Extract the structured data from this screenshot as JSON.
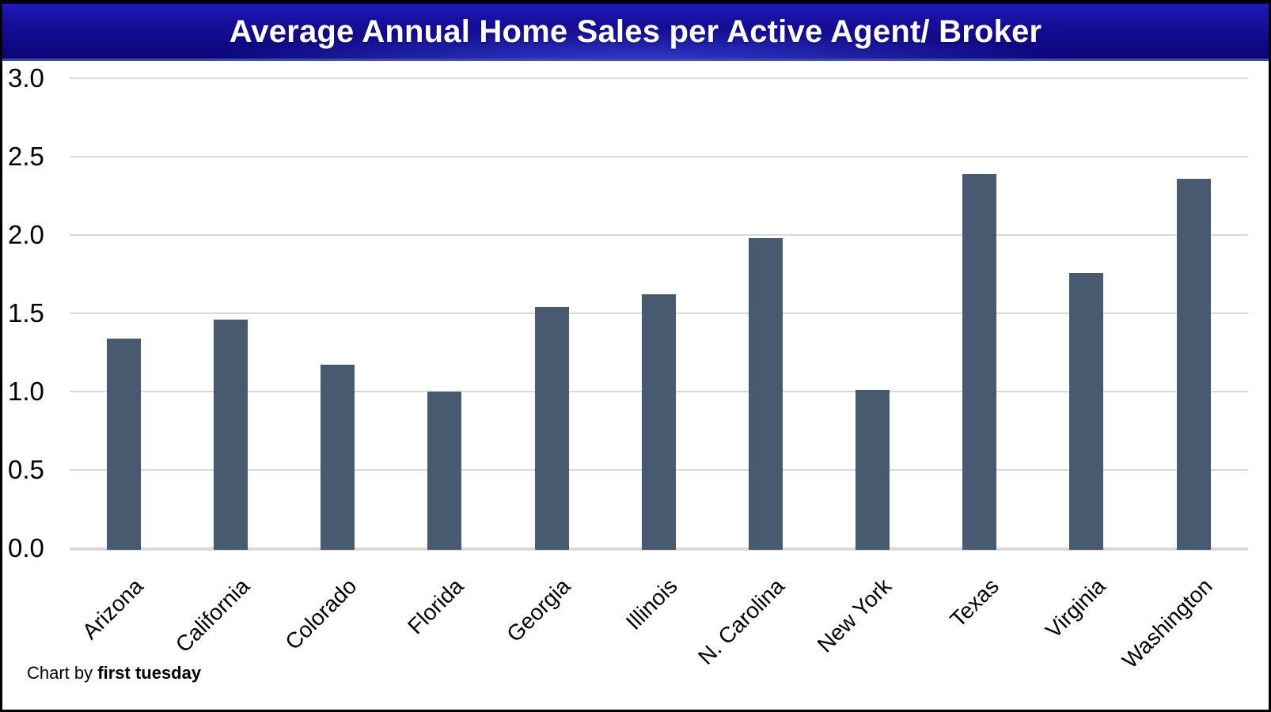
{
  "header": {
    "title": "Average Annual Home Sales per Active Agent/ Broker"
  },
  "chart_data": {
    "type": "bar",
    "title": "Average Annual Home Sales per Active Agent/ Broker",
    "categories": [
      "Arizona",
      "California",
      "Colorado",
      "Florida",
      "Georgia",
      "Illinois",
      "N. Carolina",
      "New York",
      "Texas",
      "Virginia",
      "Washington"
    ],
    "values": [
      1.34,
      1.46,
      1.17,
      1.0,
      1.54,
      1.62,
      1.98,
      1.01,
      2.39,
      1.76,
      2.36
    ],
    "xlabel": "",
    "ylabel": "",
    "ylim": [
      0.0,
      3.0
    ],
    "ytick_step": 0.5,
    "yticks": [
      "3.0",
      "2.5",
      "2.0",
      "1.5",
      "1.0",
      "0.5",
      "0.0"
    ],
    "grid": "horizontal",
    "legend": "none",
    "bar_color": "#475a70",
    "gridline_color": "#dadada",
    "band_color_top": "#2019b6",
    "band_color_bottom": "#0c0578",
    "title_color": "#ffffff",
    "xtick_rotation_deg": 45
  },
  "credit": {
    "prefix": "Chart by ",
    "brand": "first tuesday"
  }
}
